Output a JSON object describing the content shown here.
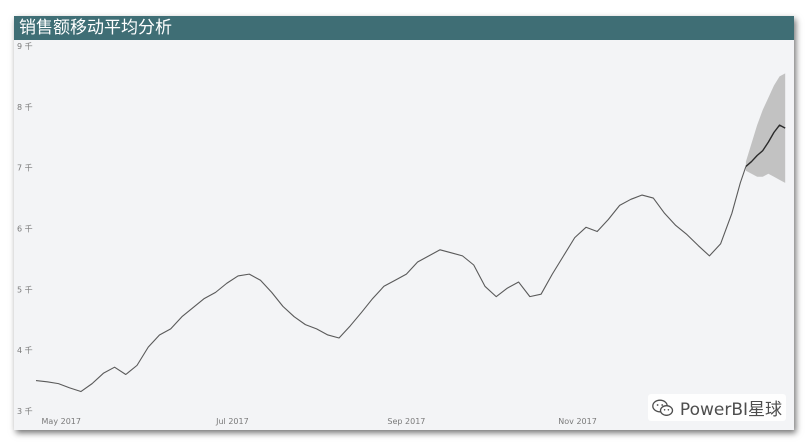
{
  "title": "销售额移动平均分析",
  "watermark": "PowerBI星球",
  "colors": {
    "title_bar": "#3f6e75",
    "line": "#5a5a5a",
    "forecast_line": "#2b2b2b",
    "band": "#bdbdbd",
    "background": "#f3f4f6"
  },
  "chart_data": {
    "type": "line",
    "title": "销售额移动平均分析",
    "xlabel": "",
    "ylabel": "",
    "ylim": [
      3,
      9
    ],
    "y_unit": "千",
    "y_ticks": [
      3,
      4,
      5,
      6,
      7,
      8,
      9
    ],
    "y_tick_labels": [
      "3 千",
      "4 千",
      "5 千",
      "6 千",
      "7 千",
      "8 千",
      "9 千"
    ],
    "x_ticks": [
      "2017-05-01",
      "2017-07-01",
      "2017-09-01",
      "2017-11-01"
    ],
    "x_tick_labels": [
      "May 2017",
      "Jul 2017",
      "Sep 2017",
      "Nov 2017"
    ],
    "xlim": [
      "2017-04-22",
      "2018-01-15"
    ],
    "grid": false,
    "series": [
      {
        "role": "actual",
        "points": [
          [
            "2017-04-22",
            3.5
          ],
          [
            "2017-04-26",
            3.48
          ],
          [
            "2017-04-30",
            3.45
          ],
          [
            "2017-05-04",
            3.38
          ],
          [
            "2017-05-08",
            3.32
          ],
          [
            "2017-05-12",
            3.45
          ],
          [
            "2017-05-16",
            3.62
          ],
          [
            "2017-05-20",
            3.72
          ],
          [
            "2017-05-24",
            3.6
          ],
          [
            "2017-05-28",
            3.75
          ],
          [
            "2017-06-01",
            4.05
          ],
          [
            "2017-06-05",
            4.25
          ],
          [
            "2017-06-09",
            4.35
          ],
          [
            "2017-06-13",
            4.55
          ],
          [
            "2017-06-17",
            4.7
          ],
          [
            "2017-06-21",
            4.85
          ],
          [
            "2017-06-25",
            4.95
          ],
          [
            "2017-06-29",
            5.1
          ],
          [
            "2017-07-03",
            5.22
          ],
          [
            "2017-07-07",
            5.25
          ],
          [
            "2017-07-11",
            5.15
          ],
          [
            "2017-07-15",
            4.95
          ],
          [
            "2017-07-19",
            4.72
          ],
          [
            "2017-07-23",
            4.55
          ],
          [
            "2017-07-27",
            4.42
          ],
          [
            "2017-07-31",
            4.35
          ],
          [
            "2017-08-04",
            4.25
          ],
          [
            "2017-08-08",
            4.2
          ],
          [
            "2017-08-12",
            4.4
          ],
          [
            "2017-08-16",
            4.62
          ],
          [
            "2017-08-20",
            4.85
          ],
          [
            "2017-08-24",
            5.05
          ],
          [
            "2017-08-28",
            5.15
          ],
          [
            "2017-09-01",
            5.25
          ],
          [
            "2017-09-05",
            5.45
          ],
          [
            "2017-09-09",
            5.55
          ],
          [
            "2017-09-13",
            5.65
          ],
          [
            "2017-09-17",
            5.6
          ],
          [
            "2017-09-21",
            5.55
          ],
          [
            "2017-09-25",
            5.4
          ],
          [
            "2017-09-29",
            5.05
          ],
          [
            "2017-10-03",
            4.88
          ],
          [
            "2017-10-07",
            5.02
          ],
          [
            "2017-10-11",
            5.12
          ],
          [
            "2017-10-15",
            4.88
          ],
          [
            "2017-10-19",
            4.92
          ],
          [
            "2017-10-23",
            5.25
          ],
          [
            "2017-10-27",
            5.55
          ],
          [
            "2017-10-31",
            5.85
          ],
          [
            "2017-11-04",
            6.02
          ],
          [
            "2017-11-08",
            5.95
          ],
          [
            "2017-11-12",
            6.15
          ],
          [
            "2017-11-16",
            6.38
          ],
          [
            "2017-11-20",
            6.48
          ],
          [
            "2017-11-24",
            6.55
          ],
          [
            "2017-11-28",
            6.5
          ],
          [
            "2017-12-02",
            6.25
          ],
          [
            "2017-12-06",
            6.05
          ],
          [
            "2017-12-10",
            5.9
          ],
          [
            "2017-12-14",
            5.72
          ],
          [
            "2017-12-18",
            5.55
          ],
          [
            "2017-12-22",
            5.75
          ],
          [
            "2017-12-26",
            6.25
          ],
          [
            "2017-12-29",
            6.75
          ],
          [
            "2017-12-31",
            7.02
          ]
        ]
      },
      {
        "role": "forecast",
        "points": [
          [
            "2017-12-31",
            7.02
          ],
          [
            "2018-01-02",
            7.1
          ],
          [
            "2018-01-04",
            7.2
          ],
          [
            "2018-01-06",
            7.28
          ],
          [
            "2018-01-08",
            7.42
          ],
          [
            "2018-01-10",
            7.58
          ],
          [
            "2018-01-12",
            7.7
          ],
          [
            "2018-01-14",
            7.65
          ]
        ],
        "upper": [
          7.1,
          7.4,
          7.7,
          7.95,
          8.15,
          8.35,
          8.5,
          8.55
        ],
        "lower": [
          6.95,
          6.9,
          6.85,
          6.85,
          6.9,
          6.85,
          6.8,
          6.75
        ]
      }
    ]
  }
}
